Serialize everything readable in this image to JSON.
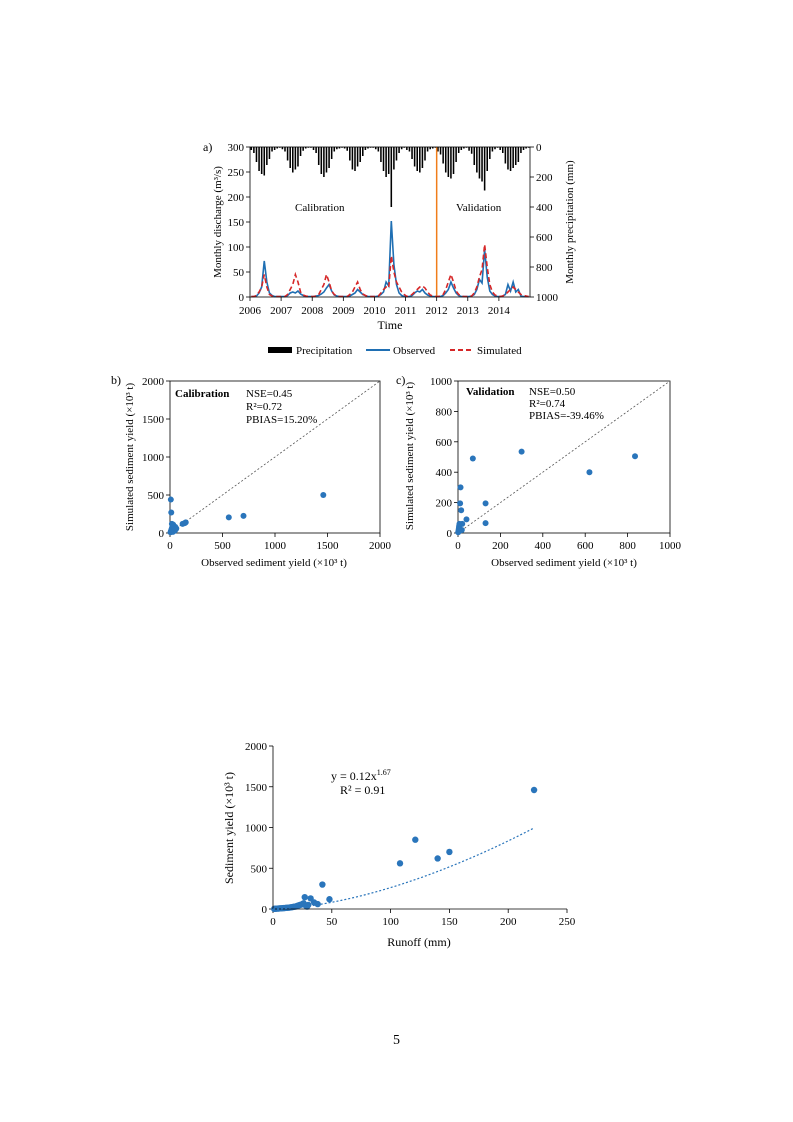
{
  "figure_top": {
    "panel_a": {
      "panel_label": "a)",
      "xlabel": "Time",
      "ylabel_left": "Monthly discharge (m³/s)",
      "ylabel_right": "Monthly precipitation (mm)",
      "text_calibration": "Calibration",
      "text_validation": "Validation",
      "legend": {
        "precipitation": "Precipitation",
        "observed": "Observed",
        "simulated": "Simulated"
      }
    },
    "panel_b": {
      "panel_label": "b)",
      "title": "Calibration",
      "stats": [
        "NSE=0.45",
        "R²=0.72",
        "PBIAS=15.20%"
      ],
      "xlabel": "Observed sediment yield (×10³ t)",
      "ylabel": "Simulated sediment yield (×10³ t)"
    },
    "panel_c": {
      "panel_label": "c)",
      "title": "Validation",
      "stats": [
        "NSE=0.50",
        "R²=0.74",
        "PBIAS=-39.46%"
      ],
      "xlabel": "Observed sediment yield (×10³ t)",
      "ylabel": "Simulated sediment yield (×10³ t)"
    }
  },
  "figure_bottom": {
    "equation_line1": "y = 0.12x",
    "equation_exponent": "1.67",
    "equation_line2": "R² = 0.91",
    "xlabel": "Runoff (mm)",
    "ylabel": "Sediment yield (×10³ t)"
  },
  "page_number": "5",
  "colors": {
    "observed": "#1f6fb3",
    "simulated": "#d62728",
    "precip": "#000000",
    "divider": "#f07d1a",
    "point": "#2a75bb"
  },
  "chart_data": [
    {
      "id": "a",
      "type": "line",
      "x_ticks": [
        "2006",
        "2007",
        "2008",
        "2009",
        "2010",
        "2011",
        "2012",
        "2013",
        "2014"
      ],
      "xlim": [
        2006,
        2015
      ],
      "ylim_left": [
        0,
        300
      ],
      "ylim_right": [
        1000,
        0
      ],
      "yticks_left": [
        0,
        50,
        100,
        150,
        200,
        250,
        300
      ],
      "yticks_right": [
        0,
        200,
        400,
        600,
        800,
        1000
      ],
      "calibration_validation_split": 2012,
      "series": [
        {
          "name": "Observed",
          "axis": "left",
          "values": [
            1,
            1,
            2,
            8,
            20,
            72,
            30,
            8,
            3,
            1,
            1,
            1,
            1,
            1,
            3,
            8,
            10,
            8,
            12,
            6,
            3,
            1,
            1,
            1,
            1,
            2,
            3,
            6,
            10,
            18,
            25,
            12,
            4,
            2,
            1,
            1,
            1,
            1,
            2,
            5,
            8,
            15,
            10,
            5,
            3,
            1,
            1,
            1,
            1,
            2,
            5,
            10,
            30,
            22,
            152,
            65,
            25,
            8,
            3,
            1,
            1,
            1,
            3,
            8,
            12,
            10,
            15,
            8,
            4,
            2,
            1,
            1,
            1,
            1,
            3,
            8,
            15,
            30,
            18,
            8,
            3,
            1,
            1,
            1,
            1,
            2,
            5,
            15,
            35,
            28,
            95,
            40,
            12,
            5,
            2,
            1,
            1,
            2,
            5,
            25,
            12,
            30,
            10,
            15,
            2,
            1,
            1,
            1
          ]
        },
        {
          "name": "Simulated",
          "axis": "left",
          "values": [
            1,
            1,
            3,
            10,
            20,
            45,
            20,
            5,
            2,
            1,
            1,
            1,
            1,
            1,
            5,
            15,
            25,
            45,
            30,
            10,
            4,
            2,
            1,
            1,
            1,
            2,
            5,
            15,
            25,
            45,
            30,
            12,
            5,
            2,
            1,
            1,
            1,
            1,
            5,
            10,
            20,
            30,
            15,
            6,
            3,
            1,
            1,
            1,
            1,
            2,
            8,
            15,
            20,
            18,
            82,
            50,
            30,
            20,
            10,
            5,
            1,
            2,
            5,
            10,
            15,
            20,
            22,
            18,
            10,
            4,
            2,
            1,
            1,
            2,
            5,
            15,
            30,
            45,
            30,
            12,
            5,
            2,
            1,
            1,
            1,
            2,
            8,
            20,
            40,
            55,
            105,
            60,
            25,
            10,
            4,
            2,
            1,
            2,
            5,
            10,
            15,
            20,
            15,
            10,
            5,
            3,
            2,
            1
          ]
        },
        {
          "name": "Precipitation",
          "axis": "right",
          "type": "bar",
          "values": [
            20,
            40,
            100,
            160,
            180,
            190,
            120,
            80,
            30,
            20,
            10,
            5,
            15,
            30,
            90,
            140,
            170,
            150,
            130,
            60,
            25,
            10,
            5,
            5,
            20,
            40,
            120,
            180,
            200,
            170,
            140,
            80,
            30,
            15,
            10,
            5,
            10,
            25,
            90,
            150,
            160,
            130,
            100,
            60,
            20,
            10,
            5,
            5,
            15,
            30,
            100,
            160,
            200,
            180,
            400,
            150,
            90,
            40,
            15,
            5,
            20,
            30,
            80,
            130,
            160,
            170,
            140,
            90,
            30,
            15,
            10,
            5,
            30,
            50,
            110,
            170,
            200,
            210,
            180,
            100,
            40,
            20,
            10,
            5,
            25,
            45,
            120,
            170,
            210,
            230,
            290,
            160,
            80,
            30,
            15,
            5,
            20,
            40,
            110,
            150,
            160,
            140,
            120,
            100,
            40,
            20,
            10,
            5
          ]
        }
      ]
    },
    {
      "id": "b",
      "type": "scatter",
      "xlim": [
        0,
        2000
      ],
      "ylim": [
        0,
        2000
      ],
      "ticks": [
        0,
        500,
        1000,
        1500,
        2000
      ],
      "x": [
        5,
        10,
        15,
        20,
        25,
        30,
        35,
        40,
        45,
        50,
        8,
        12,
        18,
        22,
        28,
        32,
        42,
        55,
        60,
        120,
        140,
        150,
        560,
        700,
        1460
      ],
      "y": [
        10,
        30,
        50,
        70,
        90,
        110,
        60,
        40,
        30,
        80,
        440,
        270,
        120,
        20,
        15,
        100,
        70,
        50,
        60,
        120,
        130,
        140,
        205,
        225,
        500
      ],
      "reference_line": "1:1"
    },
    {
      "id": "c",
      "type": "scatter",
      "xlim": [
        0,
        1000
      ],
      "ylim": [
        0,
        1000
      ],
      "ticks": [
        0,
        200,
        400,
        600,
        800,
        1000
      ],
      "x": [
        1,
        2,
        3,
        4,
        5,
        6,
        7,
        8,
        10,
        12,
        15,
        18,
        20,
        40,
        70,
        130,
        130,
        300,
        620,
        835
      ],
      "y": [
        5,
        10,
        20,
        30,
        40,
        50,
        60,
        15,
        195,
        300,
        150,
        20,
        60,
        90,
        490,
        65,
        195,
        535,
        400,
        505
      ],
      "reference_line": "1:1"
    },
    {
      "id": "d",
      "type": "scatter",
      "xlim": [
        0,
        250
      ],
      "ylim": [
        0,
        2000
      ],
      "xticks": [
        0,
        50,
        100,
        150,
        200,
        250
      ],
      "yticks": [
        0,
        500,
        1000,
        1500,
        2000
      ],
      "x": [
        1,
        2,
        3,
        4,
        5,
        6,
        7,
        8,
        9,
        10,
        11,
        12,
        13,
        14,
        15,
        16,
        17,
        18,
        19,
        20,
        21,
        22,
        23,
        24,
        25,
        26,
        27,
        28,
        29,
        30,
        32,
        35,
        38,
        42,
        48,
        108,
        121,
        140,
        150,
        222
      ],
      "y": [
        2,
        3,
        4,
        5,
        6,
        8,
        9,
        10,
        11,
        12,
        14,
        15,
        16,
        18,
        20,
        22,
        25,
        28,
        30,
        35,
        40,
        45,
        50,
        55,
        60,
        70,
        145,
        40,
        30,
        50,
        130,
        80,
        60,
        300,
        120,
        560,
        850,
        620,
        700,
        1460
      ],
      "fit": {
        "a": 0.12,
        "b": 1.67,
        "r2": 0.91
      }
    }
  ]
}
